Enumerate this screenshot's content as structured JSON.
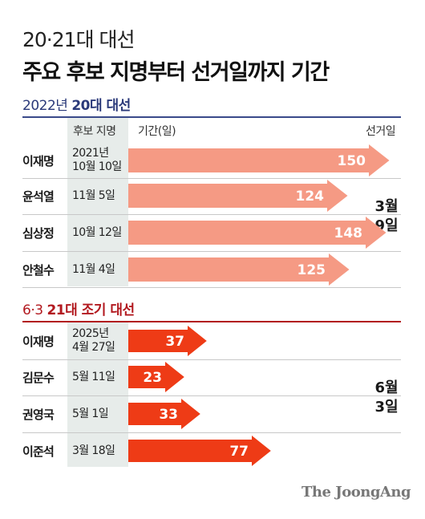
{
  "title": {
    "line1": "20·21대 대선",
    "line2": "주요 후보 지명부터 선거일까지 기간"
  },
  "columns": {
    "nomination": "후보 지명",
    "period": "기간(일)",
    "election_day": "선거일"
  },
  "brand": "The JoongAng",
  "colors": {
    "section1_bar": "#f59a84",
    "section2_bar": "#ee3b16",
    "section1_accent": "#2b3a7a",
    "section2_accent": "#b2191f"
  },
  "chart_data": [
    {
      "type": "bar",
      "title_prefix": "2022년",
      "title_bold": "20대 대선",
      "categories": [
        "이재명",
        "윤석열",
        "심상정",
        "안철수"
      ],
      "nomination_dates": [
        [
          "2021년",
          "10월 10일"
        ],
        [
          "11월 5일"
        ],
        [
          "10월 12일"
        ],
        [
          "11월 4일"
        ]
      ],
      "values": [
        150,
        124,
        148,
        125
      ],
      "election_day_note": [
        "3월",
        "9일"
      ]
    },
    {
      "type": "bar",
      "title_prefix": "6·3",
      "title_bold": "21대 조기 대선",
      "categories": [
        "이재명",
        "김문수",
        "권영국",
        "이준석"
      ],
      "nomination_dates": [
        [
          "2025년",
          "4월 27일"
        ],
        [
          "5월 11일"
        ],
        [
          "5월 1일"
        ],
        [
          "3월 18일"
        ]
      ],
      "values": [
        37,
        23,
        33,
        77
      ],
      "election_day_note": [
        "6월",
        "3일"
      ]
    }
  ]
}
